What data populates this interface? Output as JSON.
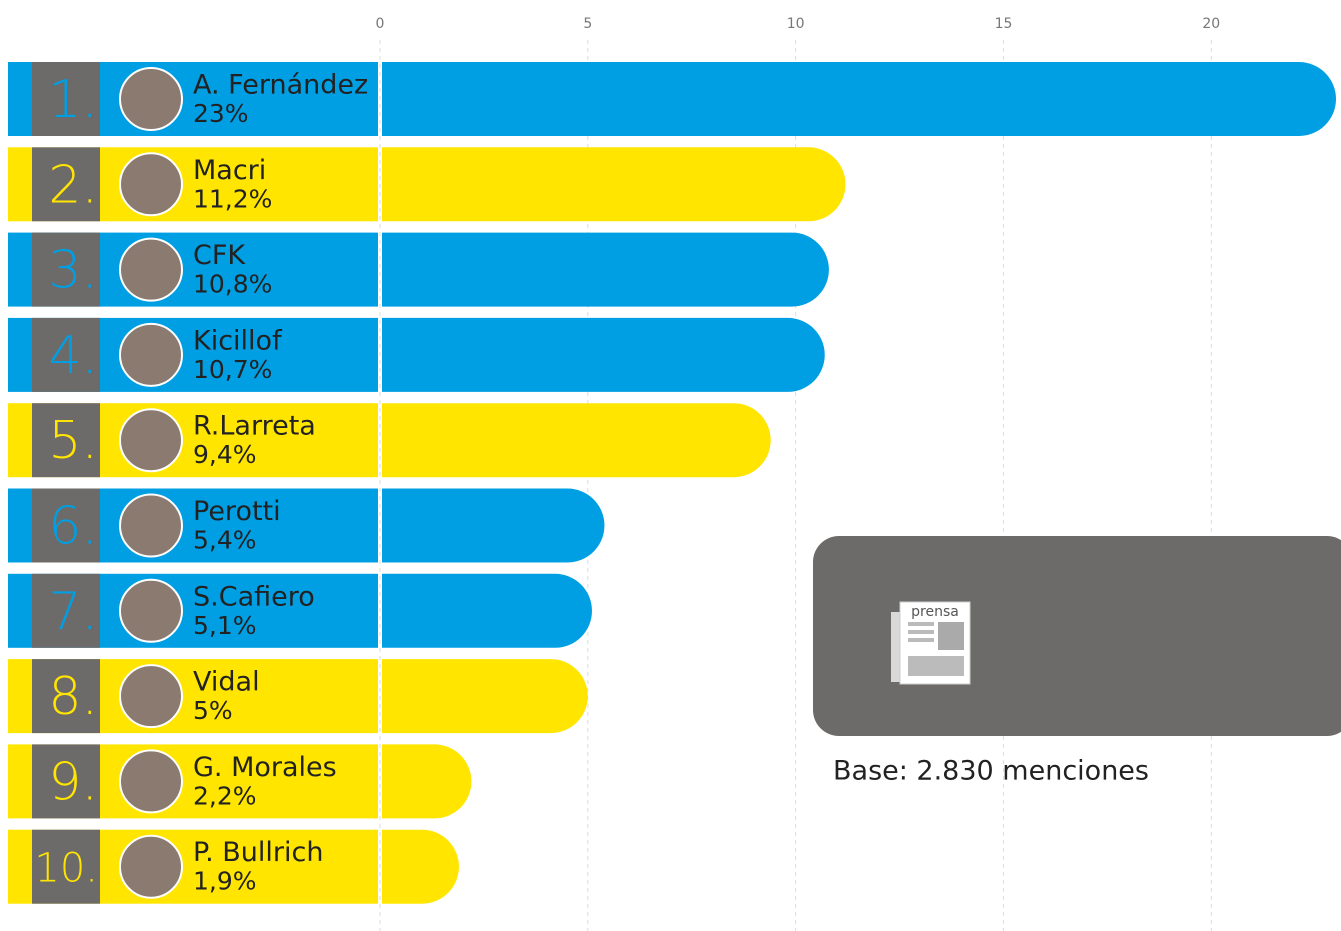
{
  "chart_data": {
    "type": "bar",
    "ranks": [
      "1.",
      "2.",
      "3.",
      "4.",
      "5.",
      "6.",
      "7.",
      "8.",
      "9.",
      "10."
    ],
    "categories": [
      "A. Fernández",
      "Macri",
      "CFK",
      "Kicillof",
      "R.Larreta",
      "Perotti",
      "S.Cafiero",
      "Vidal",
      "G. Morales",
      "P. Bullrich"
    ],
    "values": [
      23,
      11.2,
      10.8,
      10.7,
      9.4,
      5.4,
      5.1,
      5,
      2.2,
      1.9
    ],
    "value_labels": [
      "23%",
      "11,2%",
      "10,8%",
      "10,7%",
      "9,4%",
      "5,4%",
      "5,1%",
      "5%",
      "2,2%",
      "1,9%"
    ],
    "colors": [
      "#009fe3",
      "#ffe500",
      "#009fe3",
      "#009fe3",
      "#ffe500",
      "#009fe3",
      "#009fe3",
      "#ffe500",
      "#ffe500",
      "#ffe500"
    ],
    "xlim": [
      0,
      23
    ],
    "xticks": [
      0,
      5,
      10,
      15,
      20
    ],
    "grid": true,
    "source_icon": "prensa",
    "annotation": "Base: 2.830 menciones"
  }
}
